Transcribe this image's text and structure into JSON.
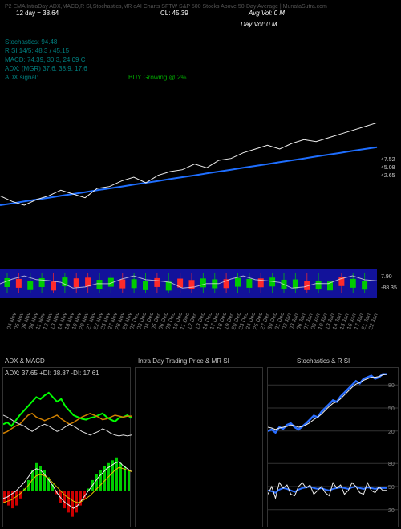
{
  "colors": {
    "bg": "#000000",
    "text_white": "#ffffff",
    "text_teal": "#008080",
    "text_green": "#00aa00",
    "text_gray": "#888888",
    "line_blue": "#1e6eff",
    "line_white": "#eeeeee",
    "area_navy": "#12129a",
    "macd_green": "#00ff00",
    "macd_red": "#ff0000",
    "stoch_blue": "#2a6eff",
    "adx_orange": "#d08000",
    "grid": "#333333"
  },
  "header": {
    "row1_left": "12 day = 38.64",
    "row1_mid": "CL: 45.39",
    "row1_right": "Avg Vol: 0   M",
    "row2_right": "Day Vol: 0   M",
    "title_faint": "P2 EMA IntraDay ADX,MACD,R   SI,Stochastics,MR   eAI Charts SFTW   S&P 500 Stocks Above 50-Day Average | MunafaSutra.com"
  },
  "indicators": {
    "stochastics": "Stochastics: 94.48",
    "rsi": "R   SI 14/5: 48.3 / 45.15",
    "macd": "MACD: 74.39, 30.3, 24.09 C",
    "adx": "ADX:               (MGR) 37.6, 38.9, 17.6",
    "adx_signal_label": "ADX signal:",
    "adx_signal_value": "BUY Growing @ 2%"
  },
  "main_chart": {
    "y_labels_right": [
      "47.52",
      "45.08",
      "42.65"
    ],
    "price_white": [
      41.5,
      41.2,
      41.0,
      41.3,
      41.5,
      41.8,
      41.6,
      41.4,
      41.9,
      42.0,
      42.3,
      42.5,
      42.2,
      42.6,
      42.8,
      42.9,
      43.2,
      43.0,
      43.4,
      43.5,
      43.8,
      44.0,
      44.2,
      44.0,
      44.3,
      44.5,
      44.4,
      44.6,
      44.8,
      45.0,
      45.2,
      45.4
    ],
    "price_blue": [
      41.0,
      41.1,
      41.2,
      41.3,
      41.4,
      41.5,
      41.6,
      41.7,
      41.8,
      41.9,
      42.0,
      42.1,
      42.2,
      42.3,
      42.4,
      42.5,
      42.6,
      42.7,
      42.8,
      42.9,
      43.0,
      43.1,
      43.2,
      43.3,
      43.4,
      43.5,
      43.6,
      43.7,
      43.8,
      43.9,
      44.0,
      44.1
    ],
    "y_min": 38,
    "y_max": 50
  },
  "candle_strip": {
    "candles": [
      {
        "c": "g"
      },
      {
        "c": "r"
      },
      {
        "c": "g"
      },
      {
        "c": "g"
      },
      {
        "c": "r"
      },
      {
        "c": "g"
      },
      {
        "c": "r"
      },
      {
        "c": "r"
      },
      {
        "c": "g"
      },
      {
        "c": "g"
      },
      {
        "c": "r"
      },
      {
        "c": "g"
      },
      {
        "c": "g"
      },
      {
        "c": "r"
      },
      {
        "c": "g"
      },
      {
        "c": "r"
      },
      {
        "c": "r"
      },
      {
        "c": "g"
      },
      {
        "c": "g"
      },
      {
        "c": "r"
      },
      {
        "c": "g"
      },
      {
        "c": "g"
      },
      {
        "c": "r"
      },
      {
        "c": "g"
      },
      {
        "c": "g"
      },
      {
        "c": "g"
      },
      {
        "c": "r"
      },
      {
        "c": "g"
      },
      {
        "c": "g"
      },
      {
        "c": "r"
      },
      {
        "c": "g"
      },
      {
        "c": "g"
      }
    ],
    "y_labels": [
      "7.90",
      "-88.35"
    ]
  },
  "date_axis": [
    "04 Nov",
    "05 Nov",
    "06 Nov",
    "08 Nov",
    "11 Nov",
    "12 Nov",
    "13 Nov",
    "14 Nov",
    "18 Nov",
    "19 Nov",
    "20 Nov",
    "21 Nov",
    "22 Nov",
    "25 Nov",
    "27 Nov",
    "28 Nov",
    "29 Nov",
    "02 Dec",
    "03 Dec",
    "04 Dec",
    "05 Dec",
    "06 Dec",
    "09 Dec",
    "10 Dec",
    "11 Dec",
    "12 Dec",
    "13 Dec",
    "16 Dec",
    "17 Dec",
    "18 Dec",
    "19 Dec",
    "20 Dec",
    "23 Dec",
    "24 Dec",
    "25 Dec",
    "27 Dec",
    "30 Dec",
    "31 Dec",
    "02 Jan",
    "03 Jan",
    "06 Jan",
    "07 Jan",
    "08 Jan",
    "10 Jan",
    "13 Jan",
    "14 Jan",
    "15 Jan",
    "16 Jan",
    "17 Jan",
    "21 Jan",
    "22 Jan"
  ],
  "sub_titles": {
    "adx_macd": "ADX   & MACD",
    "intra": "Intra Day Trading Price   & MR   SI",
    "stoch": "Stochastics & R   SI"
  },
  "adx_panel": {
    "label": "ADX: 37.65 +DI: 38.87 -DI: 17.61",
    "adx_green": [
      30,
      32,
      28,
      34,
      40,
      45,
      50,
      55,
      60,
      58,
      62,
      65,
      60,
      55,
      58,
      50,
      45,
      40,
      38,
      36,
      35,
      37,
      38,
      40,
      42,
      38,
      35,
      33,
      37,
      38,
      40,
      37
    ],
    "plus_di": [
      20,
      22,
      25,
      28,
      30,
      35,
      40,
      42,
      38,
      36,
      34,
      36,
      38,
      40,
      36,
      33,
      30,
      32,
      35,
      38,
      40,
      42,
      40,
      38,
      35,
      36,
      38,
      40,
      39,
      38,
      39,
      39
    ],
    "minus_di": [
      40,
      38,
      35,
      32,
      30,
      28,
      25,
      22,
      25,
      28,
      30,
      28,
      25,
      22,
      24,
      27,
      30,
      28,
      25,
      22,
      20,
      18,
      20,
      22,
      25,
      23,
      20,
      18,
      17,
      18,
      17,
      18
    ],
    "y_min": 0,
    "y_max": 80
  },
  "macd_panel": {
    "hist": [
      -8,
      -10,
      -12,
      -10,
      -5,
      2,
      8,
      15,
      20,
      18,
      15,
      10,
      5,
      -2,
      -8,
      -12,
      -15,
      -18,
      -15,
      -10,
      -5,
      2,
      8,
      12,
      15,
      18,
      20,
      22,
      24,
      20,
      18,
      15
    ],
    "line": [
      -5,
      -4,
      -2,
      0,
      3,
      6,
      10,
      14,
      16,
      15,
      12,
      8,
      4,
      -1,
      -5,
      -8,
      -10,
      -12,
      -10,
      -6,
      -2,
      2,
      6,
      10,
      13,
      16,
      18,
      20,
      21,
      18,
      16,
      14
    ],
    "signal": [
      -8,
      -7,
      -6,
      -4,
      -2,
      1,
      4,
      8,
      11,
      12,
      11,
      9,
      6,
      3,
      0,
      -3,
      -5,
      -7,
      -8,
      -7,
      -5,
      -3,
      0,
      3,
      6,
      9,
      12,
      15,
      17,
      16,
      15,
      14
    ]
  },
  "stoch_chart": {
    "y_ticks": [
      20,
      50,
      80
    ],
    "k_line": [
      20,
      22,
      18,
      25,
      23,
      28,
      30,
      25,
      22,
      26,
      30,
      35,
      40,
      38,
      45,
      50,
      55,
      60,
      58,
      65,
      70,
      75,
      80,
      85,
      82,
      88,
      90,
      92,
      88,
      90,
      94,
      94
    ],
    "d_line": [
      25,
      24,
      22,
      24,
      25,
      26,
      28,
      27,
      25,
      26,
      28,
      31,
      35,
      38,
      42,
      47,
      52,
      56,
      58,
      62,
      67,
      72,
      77,
      81,
      83,
      86,
      88,
      90,
      90,
      91,
      93,
      94
    ]
  },
  "rsi_chart": {
    "y_ticks": [
      20,
      50,
      80
    ],
    "rsi14": [
      45,
      44,
      42,
      46,
      48,
      47,
      45,
      43,
      46,
      48,
      49,
      50,
      48,
      47,
      48,
      46,
      45,
      47,
      48,
      49,
      48,
      47,
      49,
      50,
      48,
      47,
      49,
      48,
      47,
      48,
      48,
      48
    ],
    "rsi5": [
      40,
      50,
      35,
      55,
      48,
      52,
      40,
      38,
      50,
      55,
      48,
      52,
      40,
      45,
      50,
      42,
      38,
      55,
      48,
      52,
      40,
      45,
      55,
      50,
      42,
      40,
      55,
      45,
      42,
      50,
      45,
      45
    ]
  }
}
